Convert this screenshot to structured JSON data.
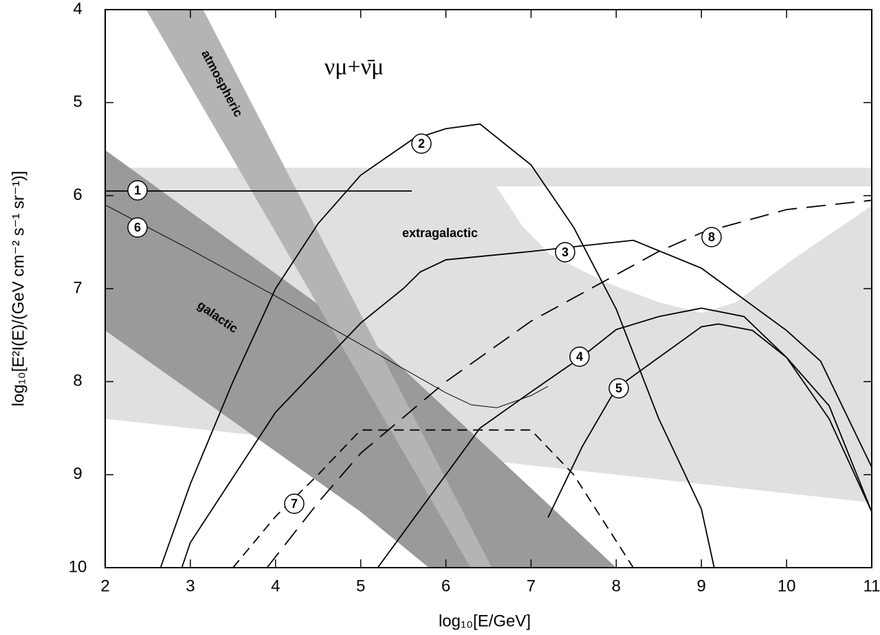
{
  "chart_data": {
    "type": "line",
    "annotation": "νμ+ν̄μ",
    "x_label": "log₁₀[E/GeV]",
    "y_label": "log₁₀[E²I(E)/(GeV cm⁻² s⁻¹ sr⁻¹)]",
    "xlim": [
      2,
      11
    ],
    "ylim": [
      10,
      4
    ],
    "xticks": [
      2,
      3,
      4,
      5,
      6,
      7,
      8,
      9,
      10,
      11
    ],
    "yticks": [
      4,
      5,
      6,
      7,
      8,
      9,
      10
    ],
    "regions": [
      {
        "name": "extragalactic",
        "color": "#e0e0e0",
        "x": [
          2,
          11,
          11,
          6.59,
          6.9,
          7.22,
          7.87,
          8.51,
          9,
          9.4,
          10.05,
          11,
          11,
          2
        ],
        "y": [
          5.7,
          5.7,
          5.9,
          5.9,
          6.33,
          6.63,
          6.93,
          7.15,
          7.26,
          7.15,
          6.7,
          6.11,
          9.3,
          8.4
        ]
      },
      {
        "name": "galactic",
        "color": "#9a9a9a",
        "x": [
          2,
          5.33,
          8,
          5.8,
          5,
          2
        ],
        "y": [
          5.51,
          7.72,
          10,
          10,
          9.4,
          7.45
        ]
      },
      {
        "name": "atmospheric",
        "color": "#b4b4b4",
        "x": [
          2.48,
          3.15,
          6.54,
          6.29
        ],
        "y": [
          4,
          4,
          10,
          10
        ]
      }
    ],
    "series": [
      {
        "name": "1",
        "color": "#000",
        "dash": "solid",
        "x": [
          2,
          5.6
        ],
        "values": [
          5.95,
          5.95
        ]
      },
      {
        "name": "2",
        "color": "#000",
        "dash": "solid",
        "x": [
          2.65,
          3,
          3.5,
          4,
          4.5,
          5,
          5.6,
          6,
          6.4,
          7,
          7.5,
          8,
          8.5,
          9,
          9.15
        ],
        "values": [
          10,
          9.1,
          8.0,
          7.0,
          6.3,
          5.78,
          5.4,
          5.28,
          5.23,
          5.67,
          6.34,
          7.22,
          8.4,
          9.37,
          10
        ]
      },
      {
        "name": "3",
        "color": "#000",
        "dash": "solid",
        "x": [
          2.9,
          3,
          4,
          5,
          5.5,
          5.7,
          6,
          7,
          8.2,
          9,
          10,
          10.4,
          11
        ],
        "values": [
          10,
          9.73,
          8.33,
          7.37,
          7.0,
          6.82,
          6.69,
          6.6,
          6.48,
          6.78,
          7.45,
          7.78,
          8.92
        ]
      },
      {
        "name": "4",
        "color": "#000",
        "dash": "solid",
        "x": [
          5.2,
          6,
          6.4,
          7,
          7.6,
          8,
          8.5,
          9,
          9.5,
          10,
          10.5,
          11
        ],
        "values": [
          10,
          9.0,
          8.5,
          8.11,
          7.73,
          7.44,
          7.3,
          7.21,
          7.3,
          7.74,
          8.26,
          9.4
        ]
      },
      {
        "name": "5",
        "color": "#000",
        "dash": "solid",
        "x": [
          7.2,
          7.6,
          8,
          8.5,
          9,
          9.2,
          9.6,
          10,
          10.5,
          11
        ],
        "values": [
          9.46,
          8.7,
          8.07,
          7.74,
          7.41,
          7.38,
          7.45,
          7.74,
          8.4,
          9.4
        ]
      },
      {
        "name": "6",
        "color": "#000",
        "dash": "thin",
        "x": [
          2,
          3,
          4,
          5,
          6,
          6.3,
          6.6,
          7,
          7.2
        ],
        "values": [
          6.1,
          6.58,
          7.08,
          7.6,
          8.12,
          8.25,
          8.28,
          8.15,
          8.05
        ]
      },
      {
        "name": "7",
        "color": "#000",
        "dash": "short",
        "x": [
          3.5,
          4,
          4.5,
          5,
          7,
          7.5,
          8.2
        ],
        "values": [
          10,
          9.45,
          9.0,
          8.52,
          8.52,
          9.0,
          10
        ]
      },
      {
        "name": "8",
        "color": "#000",
        "dash": "long",
        "x": [
          3.9,
          4.5,
          5,
          6,
          7,
          8,
          8.5,
          9,
          10,
          11
        ],
        "values": [
          10,
          9.3,
          8.77,
          8.0,
          7.35,
          6.85,
          6.6,
          6.4,
          6.15,
          6.05
        ]
      }
    ]
  }
}
